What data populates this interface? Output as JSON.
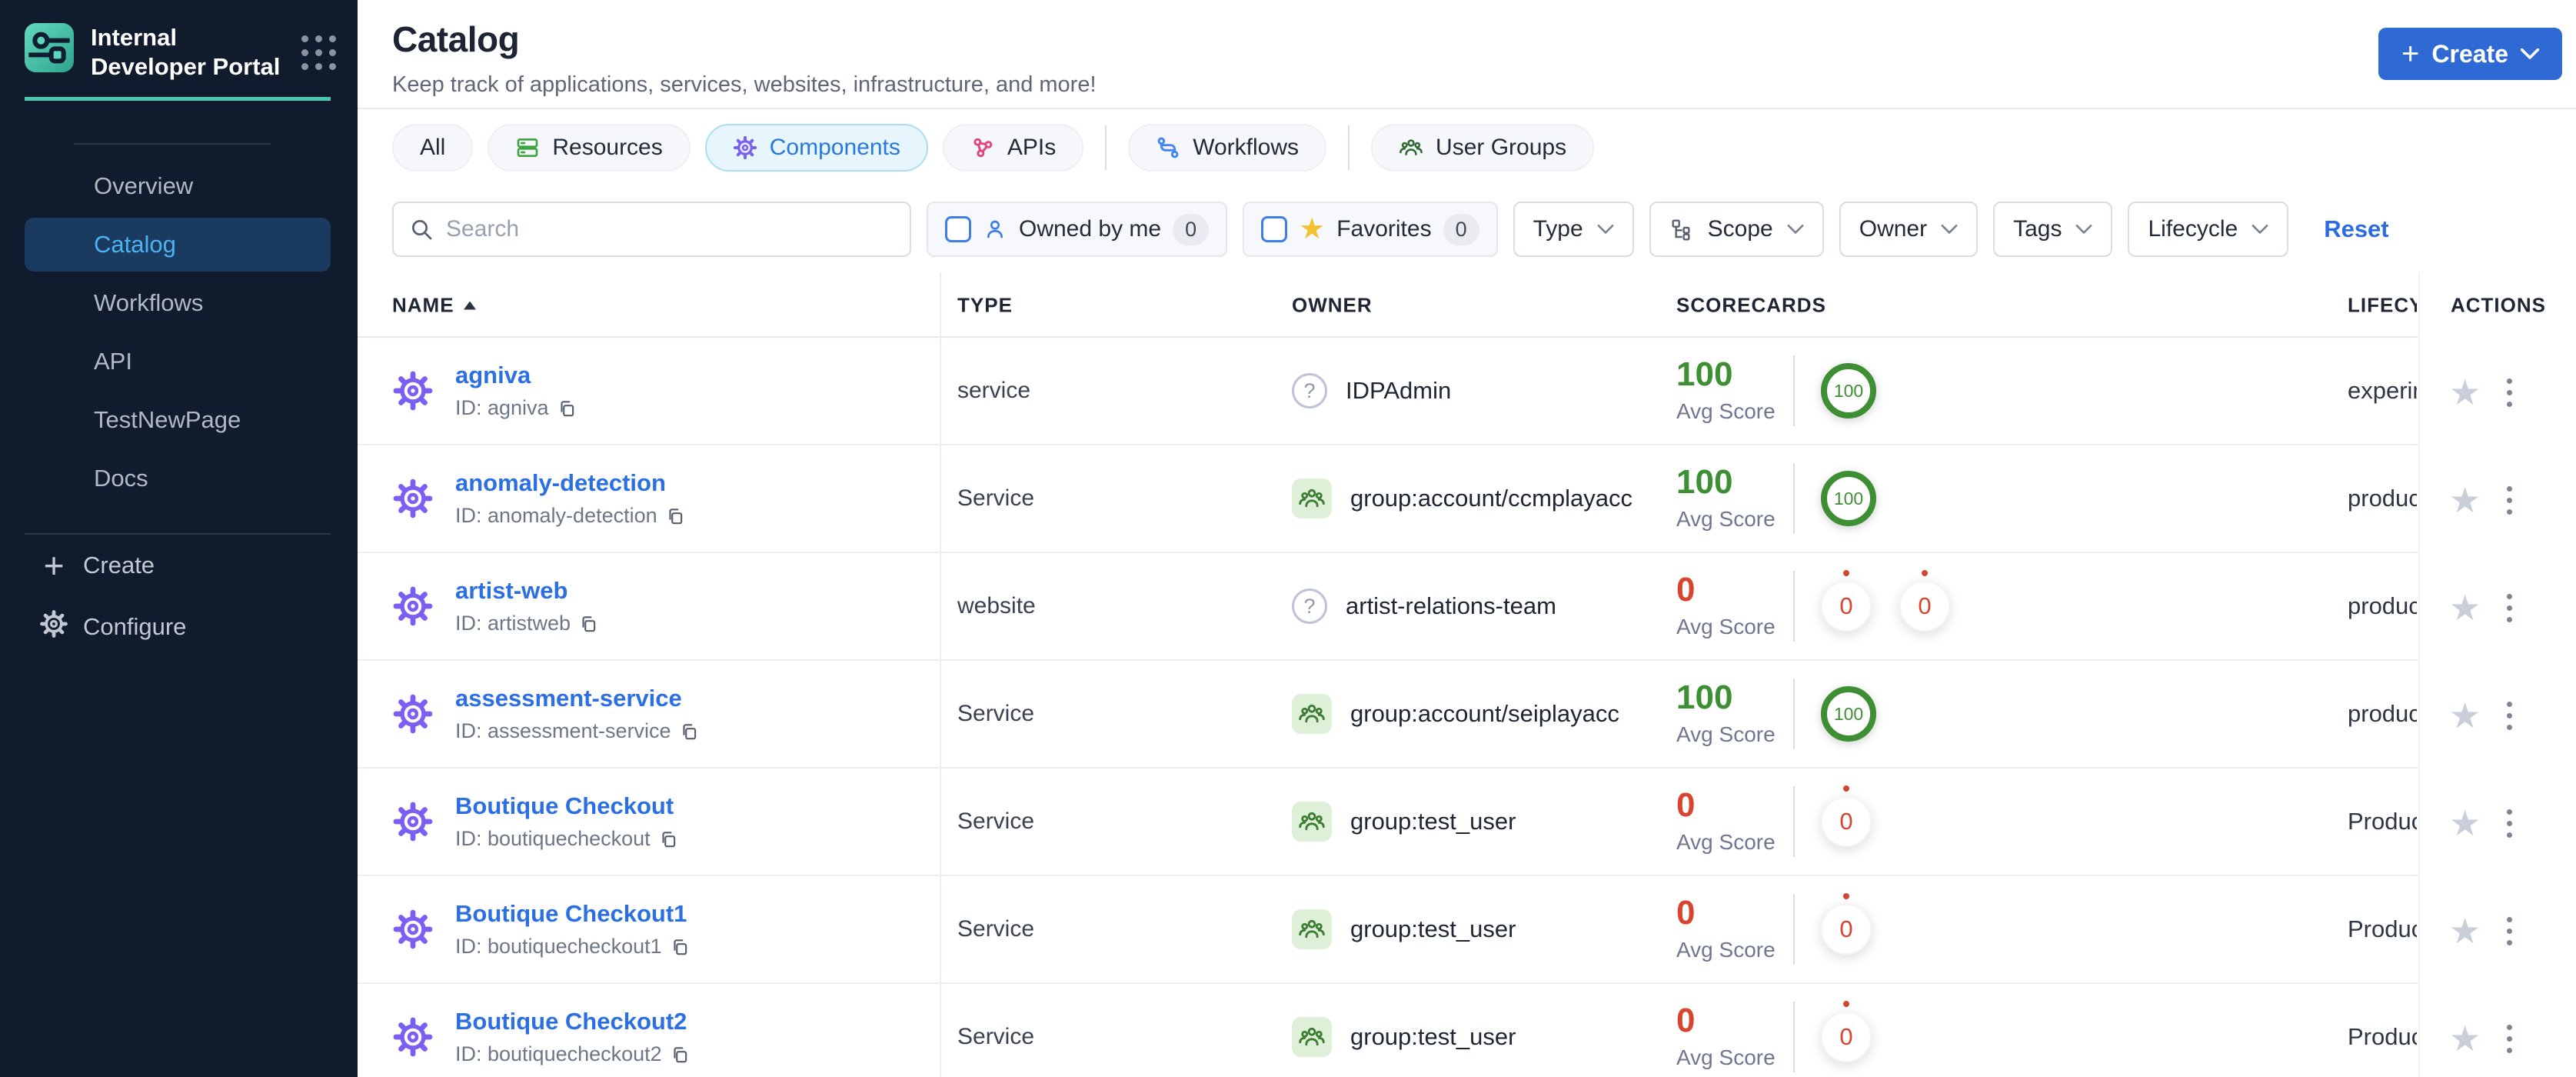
{
  "brand": {
    "title": "Internal Developer Portal"
  },
  "sidebar": {
    "items": [
      {
        "label": "Overview",
        "active": false
      },
      {
        "label": "Catalog",
        "active": true
      },
      {
        "label": "Workflows",
        "active": false
      },
      {
        "label": "API",
        "active": false
      },
      {
        "label": "TestNewPage",
        "active": false
      },
      {
        "label": "Docs",
        "active": false
      }
    ],
    "footer_items": [
      {
        "label": "Create",
        "icon": "plus-icon"
      },
      {
        "label": "Configure",
        "icon": "gear-icon"
      }
    ]
  },
  "header": {
    "title": "Catalog",
    "subtitle": "Keep track of applications, services, websites, infrastructure, and more!",
    "create_label": "Create"
  },
  "tabs": [
    {
      "label": "All",
      "active": false
    },
    {
      "label": "Resources",
      "icon": "resources-icon",
      "icon_color": "#3fa13f",
      "active": false
    },
    {
      "label": "Components",
      "icon": "components-gear-icon",
      "icon_color": "#7b5ff2",
      "active": true
    },
    {
      "label": "APIs",
      "icon": "apis-icon",
      "icon_color": "#e0457b",
      "active": false
    },
    {
      "label": "Workflows",
      "icon": "workflows-icon",
      "icon_color": "#4285f4",
      "active": false
    },
    {
      "label": "User Groups",
      "icon": "user-groups-icon",
      "icon_color": "#2f6b2f",
      "active": false
    }
  ],
  "filters": {
    "search_placeholder": "Search",
    "owned_by_me": {
      "label": "Owned by me",
      "count": "0"
    },
    "favorites": {
      "label": "Favorites",
      "count": "0"
    },
    "type_label": "Type",
    "scope_label": "Scope",
    "owner_label": "Owner",
    "tags_label": "Tags",
    "lifecycle_label": "Lifecycle",
    "reset_label": "Reset"
  },
  "table": {
    "columns": {
      "name": "NAME",
      "type": "TYPE",
      "owner": "OWNER",
      "scorecards": "SCORECARDS",
      "lifecycle": "LIFECYCLE",
      "actions": "ACTIONS"
    },
    "avg_score_label": "Avg Score",
    "rows": [
      {
        "name": "agniva",
        "id": "ID: agniva",
        "type": "service",
        "owner": {
          "kind": "user",
          "name": "IDPAdmin"
        },
        "score": {
          "value": "100",
          "tone": "green",
          "badges": [
            {
              "value": "100",
              "tone": "green"
            }
          ]
        },
        "lifecycle": "experimental"
      },
      {
        "name": "anomaly-detection",
        "id": "ID: anomaly-detection",
        "type": "Service",
        "owner": {
          "kind": "group",
          "name": "group:account/ccmplayacc"
        },
        "score": {
          "value": "100",
          "tone": "green",
          "badges": [
            {
              "value": "100",
              "tone": "green"
            }
          ]
        },
        "lifecycle": "production"
      },
      {
        "name": "artist-web",
        "id": "ID: artistweb",
        "type": "website",
        "owner": {
          "kind": "user",
          "name": "artist-relations-team"
        },
        "score": {
          "value": "0",
          "tone": "red",
          "badges": [
            {
              "value": "0",
              "tone": "zero"
            },
            {
              "value": "0",
              "tone": "zero"
            }
          ]
        },
        "lifecycle": "production"
      },
      {
        "name": "assessment-service",
        "id": "ID: assessment-service",
        "type": "Service",
        "owner": {
          "kind": "group",
          "name": "group:account/seiplayacc"
        },
        "score": {
          "value": "100",
          "tone": "green",
          "badges": [
            {
              "value": "100",
              "tone": "green"
            }
          ]
        },
        "lifecycle": "production"
      },
      {
        "name": "Boutique Checkout",
        "id": "ID: boutiquecheckout",
        "type": "Service",
        "owner": {
          "kind": "group",
          "name": "group:test_user"
        },
        "score": {
          "value": "0",
          "tone": "red",
          "badges": [
            {
              "value": "0",
              "tone": "zero"
            }
          ]
        },
        "lifecycle": "Production"
      },
      {
        "name": "Boutique Checkout1",
        "id": "ID: boutiquecheckout1",
        "type": "Service",
        "owner": {
          "kind": "group",
          "name": "group:test_user"
        },
        "score": {
          "value": "0",
          "tone": "red",
          "badges": [
            {
              "value": "0",
              "tone": "zero"
            }
          ]
        },
        "lifecycle": "Production"
      },
      {
        "name": "Boutique Checkout2",
        "id": "ID: boutiquecheckout2",
        "type": "Service",
        "owner": {
          "kind": "group",
          "name": "group:test_user"
        },
        "score": {
          "value": "0",
          "tone": "red",
          "badges": [
            {
              "value": "0",
              "tone": "zero"
            }
          ]
        },
        "lifecycle": "Production"
      }
    ]
  },
  "colors": {
    "sidebar_bg": "#101c2e",
    "teal_accent": "#49c7ae",
    "active_nav_bg": "#1b3a5f",
    "active_nav_text": "#4bb3f3",
    "primary_button_blue": "#2f6ad4",
    "link_blue": "#2b6fe3",
    "active_tab_blue": "#2878dd",
    "score_green": "#3e8e33",
    "score_red": "#d8452f",
    "gear_purple": "#7b5ff2"
  }
}
